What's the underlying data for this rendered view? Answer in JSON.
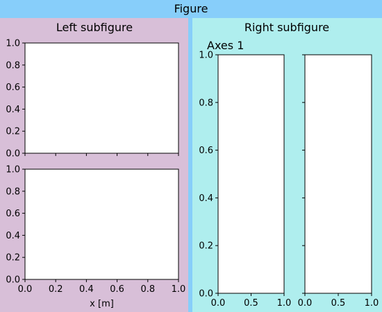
{
  "figure": {
    "title": "Figure",
    "background_color": "#87cefa"
  },
  "left_subfigure": {
    "title": "Left subfigure",
    "background_color": "#d8bfd8"
  },
  "right_subfigure": {
    "title": "Right subfigure",
    "background_color": "#afeeee"
  },
  "chart_data": [
    {
      "type": "line",
      "panel": "left-top",
      "title": "",
      "xlabel": "",
      "ylabel": "",
      "xlim": [
        0,
        1
      ],
      "ylim": [
        0,
        1
      ],
      "xticks": [
        0.0,
        0.2,
        0.4,
        0.6,
        0.8,
        1.0
      ],
      "yticks": [
        0.0,
        0.2,
        0.4,
        0.6,
        0.8,
        1.0
      ],
      "xtick_labels_visible": false,
      "series": []
    },
    {
      "type": "line",
      "panel": "left-bottom",
      "title": "",
      "xlabel": "x [m]",
      "ylabel": "",
      "xlim": [
        0,
        1
      ],
      "ylim": [
        0,
        1
      ],
      "xticks": [
        0.0,
        0.2,
        0.4,
        0.6,
        0.8,
        1.0
      ],
      "yticks": [
        0.0,
        0.2,
        0.4,
        0.6,
        0.8,
        1.0
      ],
      "xtick_labels_visible": true,
      "series": []
    },
    {
      "type": "line",
      "panel": "right-1",
      "title": "Axes 1",
      "xlabel": "",
      "ylabel": "",
      "xlim": [
        0,
        1
      ],
      "ylim": [
        0,
        1
      ],
      "xticks": [
        0.0,
        0.5,
        1.0
      ],
      "yticks": [
        0.0,
        0.2,
        0.4,
        0.6,
        0.8,
        1.0
      ],
      "xtick_labels_visible": true,
      "ytick_labels_visible": true,
      "series": []
    },
    {
      "type": "line",
      "panel": "right-2",
      "title": "",
      "xlabel": "",
      "ylabel": "",
      "xlim": [
        0,
        1
      ],
      "ylim": [
        0,
        1
      ],
      "xticks": [
        0.0,
        0.5,
        1.0
      ],
      "yticks": [
        0.0,
        0.2,
        0.4,
        0.6,
        0.8,
        1.0
      ],
      "xtick_labels_visible": true,
      "ytick_labels_visible": false,
      "series": []
    }
  ]
}
